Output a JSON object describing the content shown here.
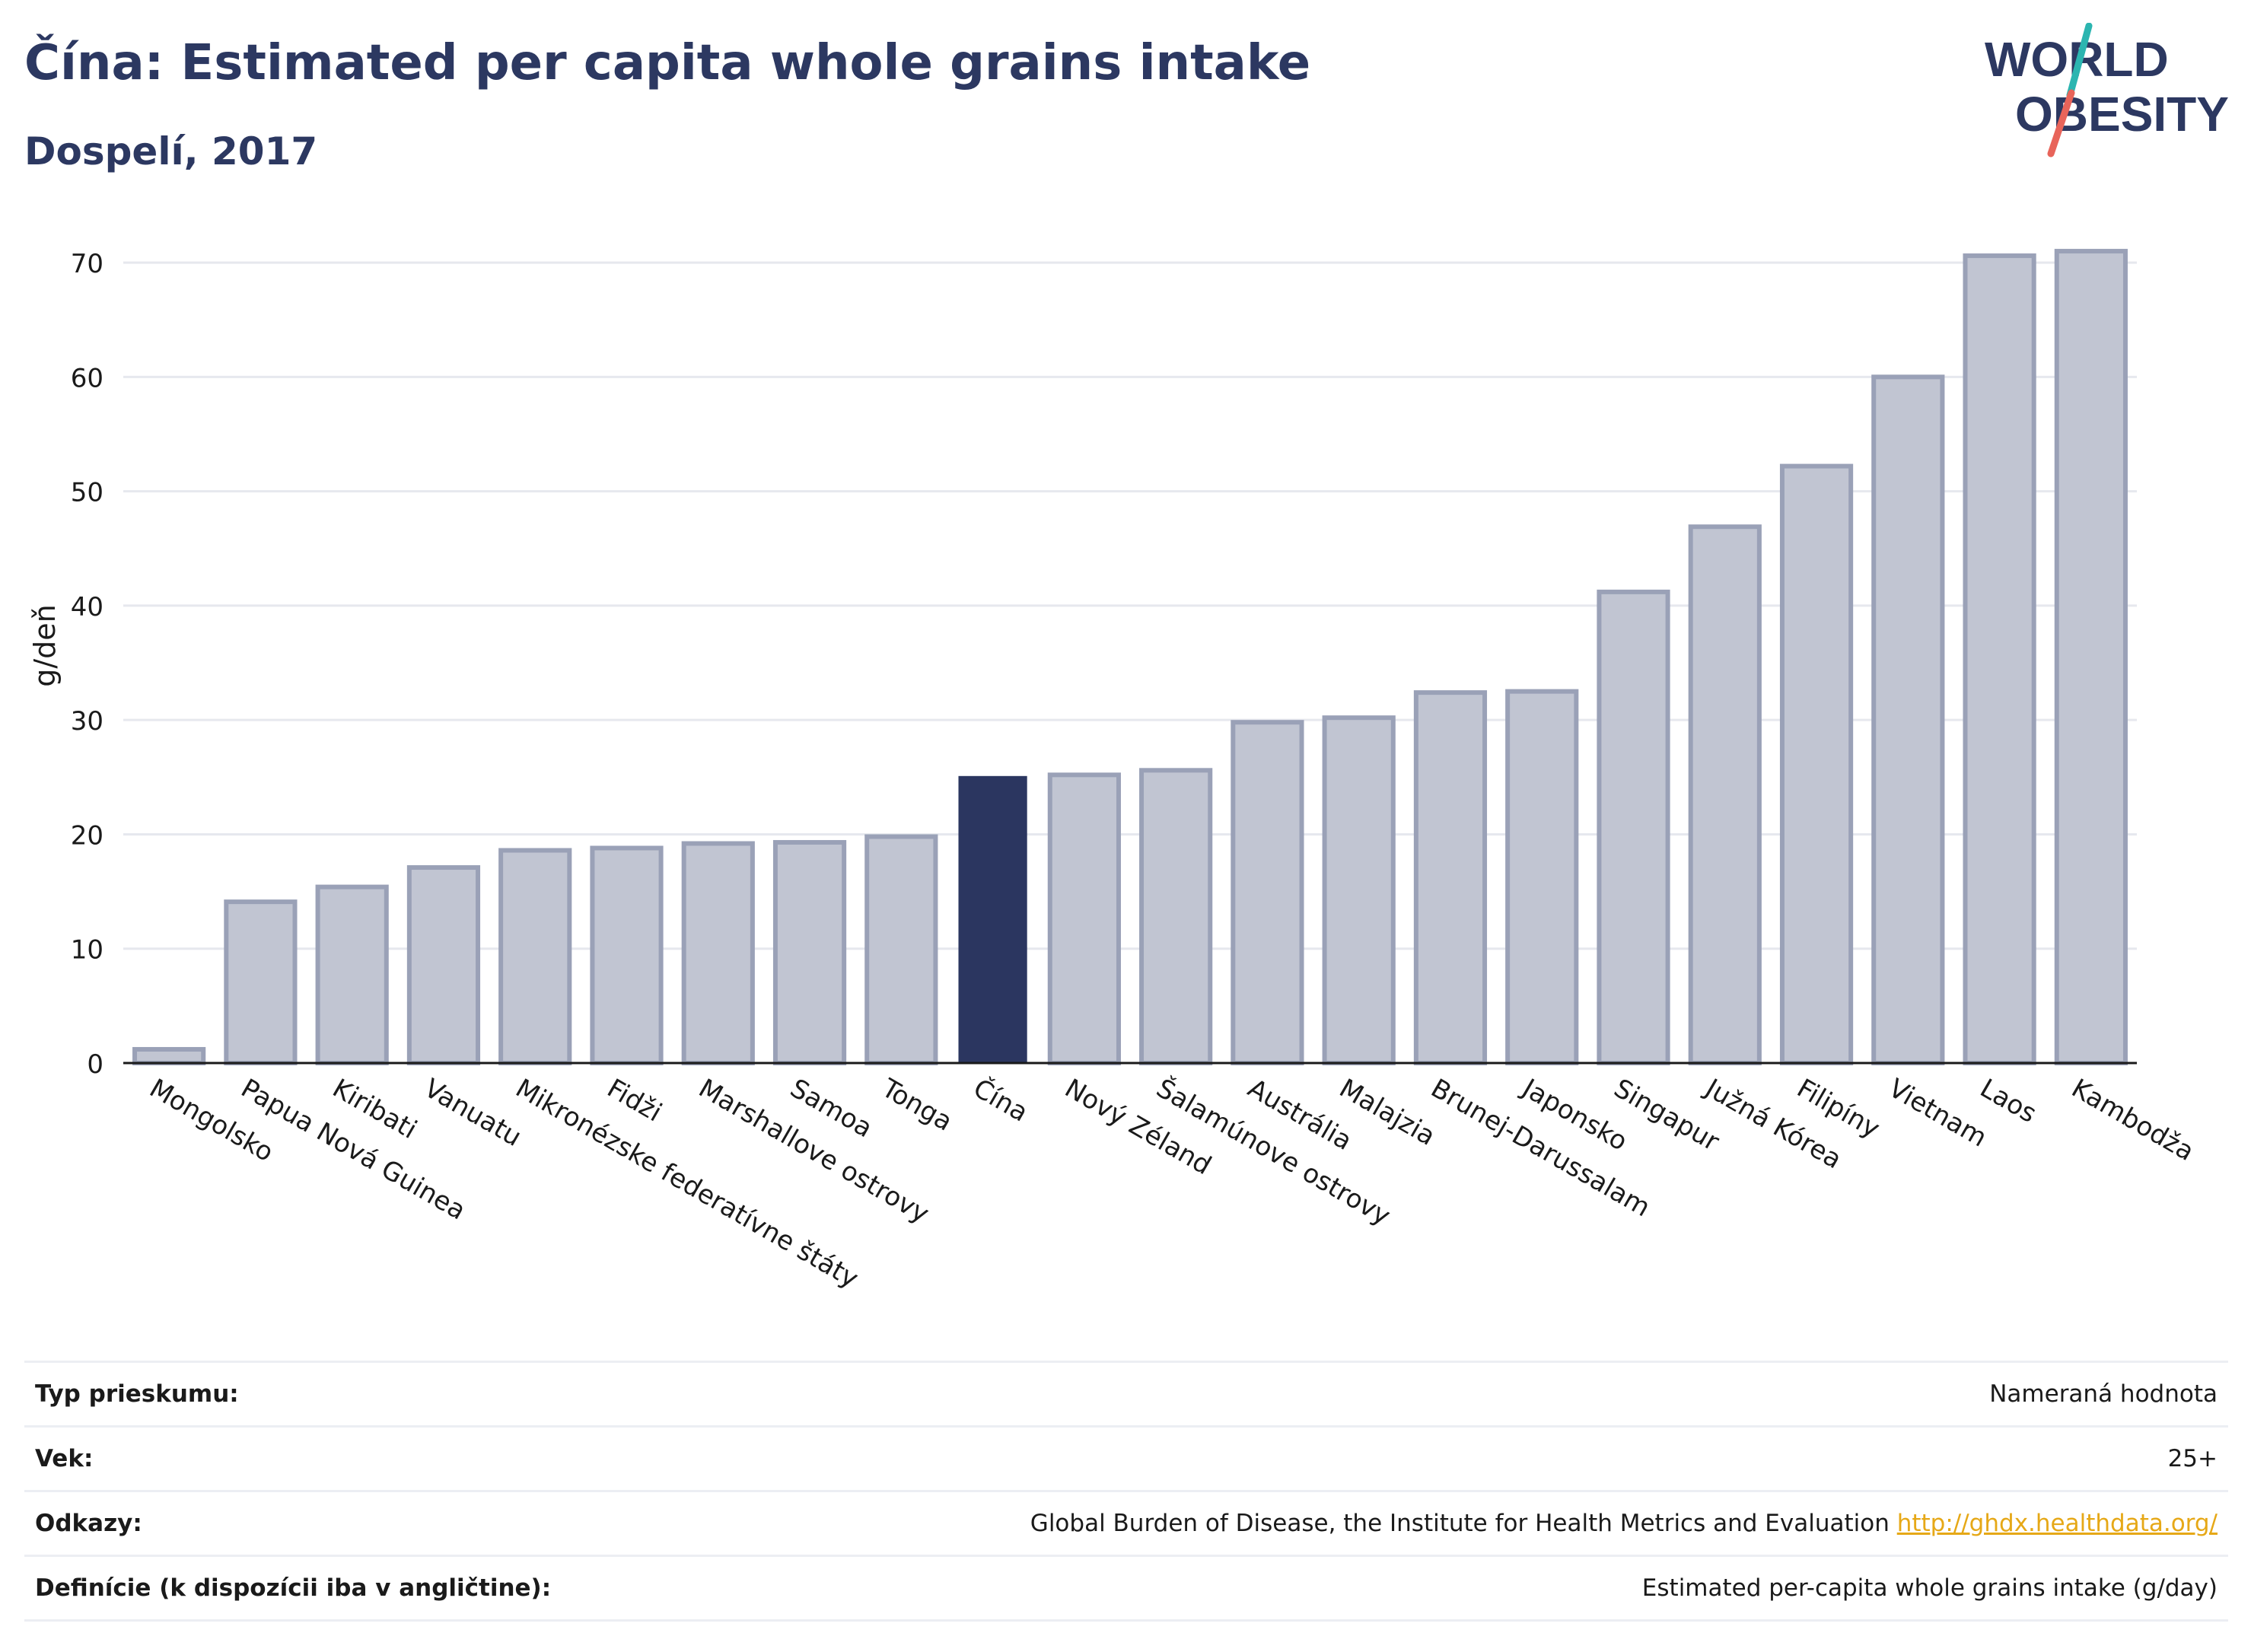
{
  "header": {
    "title": "Čína: Estimated per capita whole grains intake",
    "subtitle": "Dospelí, 2017"
  },
  "logo": {
    "line1": "WORLD",
    "line2": "OBESITY",
    "colors": {
      "text": "#2c3861",
      "accent_teal": "#2bb5b0",
      "accent_red": "#e8645a"
    }
  },
  "colors": {
    "bar_default": "#c1c5d2",
    "bar_default_stroke": "#9aa1b7",
    "bar_highlight": "#2b3660",
    "grid": "#e6e8ee",
    "axis": "#1a1a1a"
  },
  "chart_data": {
    "type": "bar",
    "title": "Čína: Estimated per capita whole grains intake",
    "subtitle": "Dospelí, 2017",
    "ylabel": "g/deň",
    "xlabel": "",
    "ylim": [
      0,
      73
    ],
    "yticks": [
      0,
      10,
      20,
      30,
      40,
      50,
      60,
      70
    ],
    "grid": true,
    "highlight": "Čína",
    "categories": [
      "Mongolsko",
      "Papua Nová Guinea",
      "Kiribati",
      "Vanuatu",
      "Mikronézske federatívne štáty",
      "Fidži",
      "Marshallove ostrovy",
      "Samoa",
      "Tonga",
      "Čína",
      "Nový Zéland",
      "Šalamúnove ostrovy",
      "Austrália",
      "Malajzia",
      "Brunej-Darussalam",
      "Japonsko",
      "Singapur",
      "Južná Kórea",
      "Filipíny",
      "Vietnam",
      "Laos",
      "Kambodža"
    ],
    "values": [
      1.2,
      14.1,
      15.4,
      17.1,
      18.6,
      18.8,
      19.2,
      19.3,
      19.8,
      25.1,
      25.2,
      25.6,
      29.8,
      30.2,
      32.4,
      32.5,
      41.2,
      46.9,
      52.2,
      60.0,
      70.6,
      71.0
    ]
  },
  "meta": {
    "rows": [
      {
        "label": "Typ prieskumu:",
        "value": "Nameraná hodnota"
      },
      {
        "label": "Vek:",
        "value": "25+"
      },
      {
        "label": "Odkazy:",
        "value": "Global Burden of Disease, the Institute for Health Metrics and Evaluation",
        "link": "http://ghdx.healthdata.org/"
      },
      {
        "label": "Definície (k dispozícii iba v angličtine):",
        "value": "Estimated per-capita whole grains intake (g/day)"
      }
    ]
  }
}
